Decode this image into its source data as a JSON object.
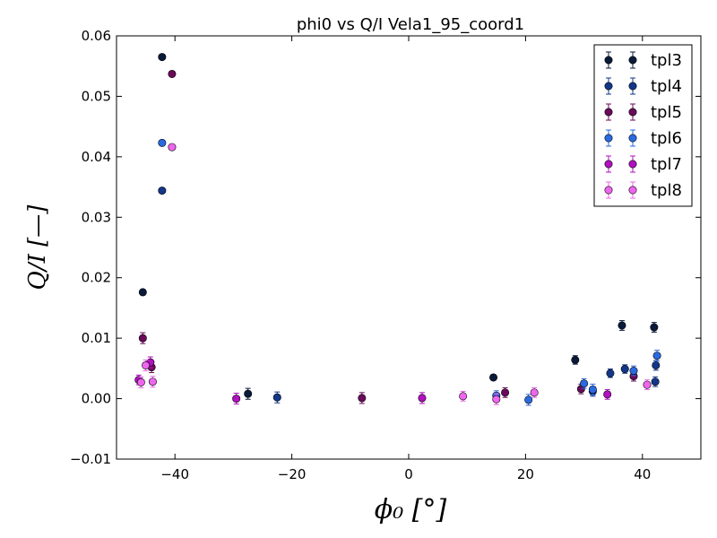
{
  "chart_data": {
    "type": "scatter",
    "title": "phi0 vs Q/I Vela1_95_coord1",
    "xlabel": "ϕ₀ [°]",
    "ylabel": "Q/I [—]",
    "xlim": [
      -50,
      50
    ],
    "ylim": [
      -0.01,
      0.06
    ],
    "xticks": [
      -40,
      -20,
      0,
      20,
      40
    ],
    "xtick_labels": [
      "−40",
      "−20",
      "0",
      "20",
      "40"
    ],
    "yticks": [
      -0.01,
      0.0,
      0.01,
      0.02,
      0.03,
      0.04,
      0.05,
      0.06
    ],
    "ytick_labels": [
      "−0.01",
      "0.00",
      "0.01",
      "0.02",
      "0.03",
      "0.04",
      "0.05",
      "0.06"
    ],
    "legend_position": "top-right",
    "grid": false,
    "series": [
      {
        "name": "tpl3",
        "color": "#0a1a3a",
        "points": [
          [
            -45.5,
            0.0176,
            0.0004
          ],
          [
            -42.2,
            0.0565,
            0.0003
          ],
          [
            -27.5,
            0.0008,
            0.0009
          ],
          [
            14.5,
            0.0035,
            0.0004
          ],
          [
            28.5,
            0.0064,
            0.0007
          ],
          [
            36.5,
            0.0121,
            0.0008
          ],
          [
            42.0,
            0.0118,
            0.0008
          ]
        ]
      },
      {
        "name": "tpl4",
        "color": "#12378a",
        "points": [
          [
            -42.2,
            0.0344,
            0.0004
          ],
          [
            -22.5,
            0.0002,
            0.0009
          ],
          [
            31.5,
            0.0012,
            0.0008
          ],
          [
            34.5,
            0.0042,
            0.0007
          ],
          [
            37.0,
            0.0049,
            0.0007
          ],
          [
            42.3,
            0.0055,
            0.0008
          ],
          [
            42.2,
            0.0028,
            0.0008
          ]
        ]
      },
      {
        "name": "tpl5",
        "color": "#6a0a5a",
        "points": [
          [
            -45.5,
            0.01,
            0.0009
          ],
          [
            -44.0,
            0.0052,
            0.0009
          ],
          [
            -40.5,
            0.0537,
            0.0004
          ],
          [
            -8.0,
            0.0001,
            0.0009
          ],
          [
            16.5,
            0.001,
            0.0008
          ],
          [
            29.5,
            0.0016,
            0.0008
          ],
          [
            38.5,
            0.0037,
            0.0008
          ]
        ]
      },
      {
        "name": "tpl6",
        "color": "#2a6ae0",
        "points": [
          [
            -42.2,
            0.0423,
            0.0004
          ],
          [
            15.0,
            0.0005,
            0.0008
          ],
          [
            20.5,
            -0.0002,
            0.0009
          ],
          [
            30.0,
            0.0025,
            0.0008
          ],
          [
            31.5,
            0.0015,
            0.0009
          ],
          [
            38.5,
            0.0046,
            0.0008
          ],
          [
            42.5,
            0.0071,
            0.0009
          ]
        ]
      },
      {
        "name": "tpl7",
        "color": "#b010c0",
        "points": [
          [
            -46.2,
            0.0031,
            0.0008
          ],
          [
            -44.2,
            0.006,
            0.0009
          ],
          [
            -29.5,
            0.0,
            0.0009
          ],
          [
            2.3,
            0.0001,
            0.0009
          ],
          [
            34.0,
            0.0007,
            0.0008
          ]
        ]
      },
      {
        "name": "tpl8",
        "color": "#ee66ee",
        "points": [
          [
            -45.8,
            0.0027,
            0.0009
          ],
          [
            -45.0,
            0.0055,
            0.0009
          ],
          [
            -43.8,
            0.0028,
            0.0009
          ],
          [
            -40.5,
            0.0416,
            0.0004
          ],
          [
            9.3,
            0.0004,
            0.0008
          ],
          [
            15.0,
            -0.0001,
            0.0009
          ],
          [
            21.5,
            0.001,
            0.0008
          ],
          [
            40.8,
            0.0023,
            0.0008
          ]
        ]
      }
    ]
  }
}
